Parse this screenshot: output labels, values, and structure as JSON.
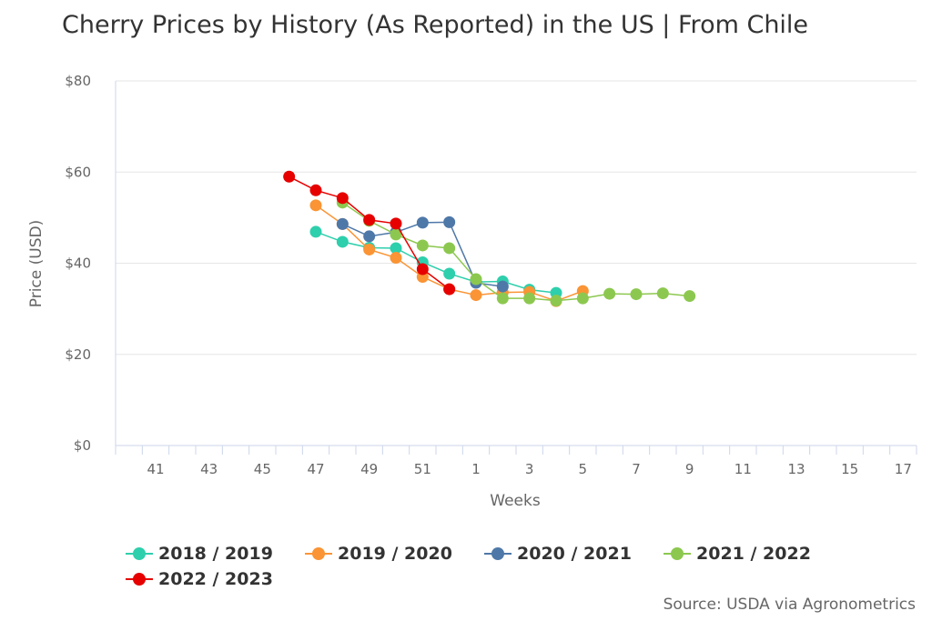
{
  "chart_data": {
    "type": "line",
    "title": "Cherry Prices by History (As Reported) in the US | From Chile",
    "xlabel": "Weeks",
    "ylabel": "Price (USD)",
    "ylim": [
      0,
      80
    ],
    "yticks": [
      {
        "value": 0,
        "label": "$0"
      },
      {
        "value": 20,
        "label": "$20"
      },
      {
        "value": 40,
        "label": "$40"
      },
      {
        "value": 60,
        "label": "$60"
      },
      {
        "value": 80,
        "label": "$80"
      }
    ],
    "x_categories": [
      "40",
      "41",
      "42",
      "43",
      "44",
      "45",
      "46",
      "47",
      "48",
      "49",
      "50",
      "51",
      "52",
      "1",
      "2",
      "3",
      "4",
      "5",
      "6",
      "7",
      "8",
      "9",
      "10",
      "11",
      "12",
      "13",
      "14",
      "15",
      "16",
      "17"
    ],
    "x_tick_labels": [
      "41",
      "43",
      "45",
      "47",
      "49",
      "51",
      "1",
      "3",
      "5",
      "7",
      "9",
      "11",
      "13",
      "15",
      "17"
    ],
    "grid": "horizontal",
    "legend_position": "bottom",
    "source": "Source: USDA via Agronometrics",
    "series": [
      {
        "name": "2018 / 2019",
        "color": "#2ecfac",
        "points": [
          {
            "week": "47",
            "value": 46.9
          },
          {
            "week": "48",
            "value": 44.7
          },
          {
            "week": "49",
            "value": 43.4
          },
          {
            "week": "50",
            "value": 43.3
          },
          {
            "week": "51",
            "value": 40.2
          },
          {
            "week": "52",
            "value": 37.7
          },
          {
            "week": "1",
            "value": 35.9
          },
          {
            "week": "2",
            "value": 36.0
          },
          {
            "week": "3",
            "value": 34.2
          },
          {
            "week": "4",
            "value": 33.5
          }
        ]
      },
      {
        "name": "2019 / 2020",
        "color": "#fa9434",
        "points": [
          {
            "week": "47",
            "value": 52.7
          },
          {
            "week": "48",
            "value": 48.6
          },
          {
            "week": "49",
            "value": 43.0
          },
          {
            "week": "50",
            "value": 41.2
          },
          {
            "week": "51",
            "value": 37.0
          },
          {
            "week": "52",
            "value": 34.3
          },
          {
            "week": "1",
            "value": 33.0
          },
          {
            "week": "2",
            "value": 33.6
          },
          {
            "week": "3",
            "value": 33.7
          },
          {
            "week": "4",
            "value": 31.7
          },
          {
            "week": "5",
            "value": 33.9
          }
        ]
      },
      {
        "name": "2020 / 2021",
        "color": "#4e78a8",
        "points": [
          {
            "week": "48",
            "value": 48.6
          },
          {
            "week": "49",
            "value": 45.9
          },
          {
            "week": "50",
            "value": 46.8
          },
          {
            "week": "51",
            "value": 48.9
          },
          {
            "week": "52",
            "value": 49.0
          },
          {
            "week": "1",
            "value": 35.7
          },
          {
            "week": "2",
            "value": 34.9
          }
        ]
      },
      {
        "name": "2021 / 2022",
        "color": "#8cc84f",
        "points": [
          {
            "week": "48",
            "value": 53.3
          },
          {
            "week": "49",
            "value": 49.3
          },
          {
            "week": "50",
            "value": 46.3
          },
          {
            "week": "51",
            "value": 43.9
          },
          {
            "week": "52",
            "value": 43.3
          },
          {
            "week": "1",
            "value": 36.5
          },
          {
            "week": "2",
            "value": 32.3
          },
          {
            "week": "3",
            "value": 32.3
          },
          {
            "week": "4",
            "value": 31.8
          },
          {
            "week": "5",
            "value": 32.3
          },
          {
            "week": "6",
            "value": 33.3
          },
          {
            "week": "7",
            "value": 33.2
          },
          {
            "week": "8",
            "value": 33.4
          },
          {
            "week": "9",
            "value": 32.8
          }
        ]
      },
      {
        "name": "2022 / 2023",
        "color": "#e60000",
        "points": [
          {
            "week": "46",
            "value": 59.0
          },
          {
            "week": "47",
            "value": 56.0
          },
          {
            "week": "48",
            "value": 54.3
          },
          {
            "week": "49",
            "value": 49.5
          },
          {
            "week": "50",
            "value": 48.7
          },
          {
            "week": "51",
            "value": 38.7
          },
          {
            "week": "52",
            "value": 34.3
          }
        ]
      }
    ]
  }
}
